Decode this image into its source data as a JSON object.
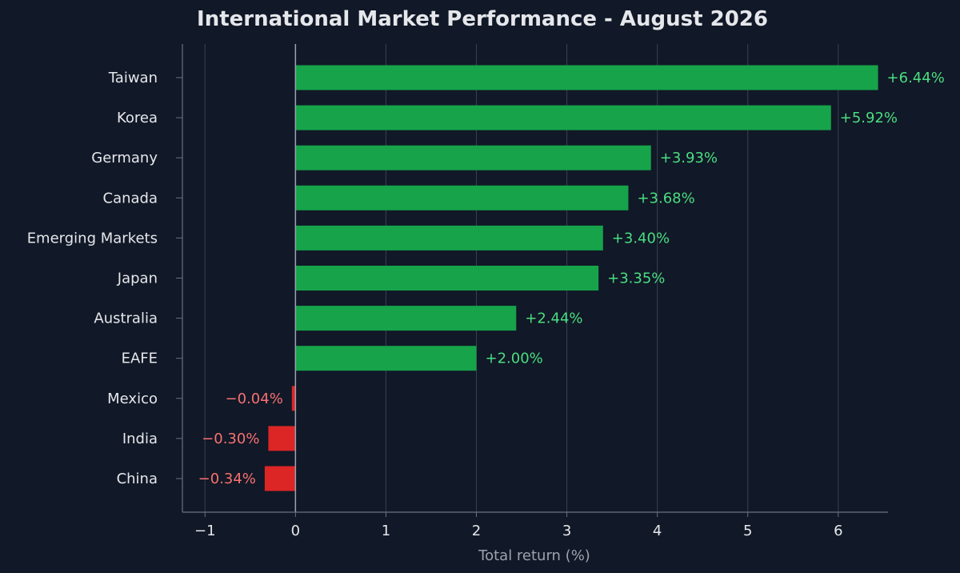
{
  "colors": {
    "background": "#111827",
    "positive_bar": "#16a34a",
    "negative_bar": "#dc2626",
    "positive_text": "#4ade80",
    "negative_text": "#f87171",
    "grid": "#374151",
    "axis": "#6b7280",
    "text": "#e5e7eb",
    "muted_text": "#9ca3af"
  },
  "chart_data": {
    "type": "bar",
    "orientation": "horizontal",
    "title": "International Market Performance - August 2026",
    "xlabel": "Total return (%)",
    "ylabel": "",
    "xlim": [
      -1.25,
      6.55
    ],
    "xticks": [
      -1,
      0,
      1,
      2,
      3,
      4,
      5,
      6
    ],
    "xtick_labels": [
      "−1",
      "0",
      "1",
      "2",
      "3",
      "4",
      "5",
      "6"
    ],
    "grid": "vertical",
    "categories": [
      "Taiwan",
      "Korea",
      "Germany",
      "Canada",
      "Emerging Markets",
      "Japan",
      "Australia",
      "EAFE",
      "Mexico",
      "India",
      "China"
    ],
    "values": [
      6.44,
      5.92,
      3.93,
      3.68,
      3.4,
      3.35,
      2.44,
      2.0,
      -0.04,
      -0.3,
      -0.34
    ],
    "value_labels": [
      "+6.44%",
      "+5.92%",
      "+3.93%",
      "+3.68%",
      "+3.40%",
      "+3.35%",
      "+2.44%",
      "+2.00%",
      "−0.04%",
      "−0.30%",
      "−0.34%"
    ]
  }
}
